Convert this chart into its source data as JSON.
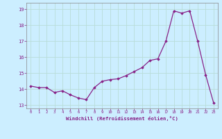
{
  "x": [
    0,
    1,
    2,
    3,
    4,
    5,
    6,
    7,
    8,
    9,
    10,
    11,
    12,
    13,
    14,
    15,
    16,
    17,
    18,
    19,
    20,
    21,
    22,
    23
  ],
  "y": [
    14.2,
    14.1,
    14.1,
    13.8,
    13.9,
    13.65,
    13.45,
    13.35,
    14.1,
    14.5,
    14.6,
    14.65,
    14.85,
    15.1,
    15.35,
    15.8,
    15.9,
    17.0,
    18.9,
    18.75,
    18.9,
    17.0,
    14.9,
    13.15
  ],
  "line_color": "#882288",
  "marker": "D",
  "marker_size": 1.8,
  "bg_color": "#cceeff",
  "grid_color": "#aaddcc",
  "xlabel": "Windchill (Refroidissement éolien,°C)",
  "xlim": [
    -0.5,
    23.5
  ],
  "ylim": [
    12.8,
    19.4
  ],
  "yticks": [
    13,
    14,
    15,
    16,
    17,
    18,
    19
  ],
  "xticks": [
    0,
    1,
    2,
    3,
    4,
    5,
    6,
    7,
    8,
    9,
    10,
    11,
    12,
    13,
    14,
    15,
    16,
    17,
    18,
    19,
    20,
    21,
    22,
    23
  ],
  "xtick_labels": [
    "0",
    "1",
    "2",
    "3",
    "4",
    "5",
    "6",
    "7",
    "8",
    "9",
    "10",
    "11",
    "12",
    "13",
    "14",
    "15",
    "16",
    "17",
    "18",
    "19",
    "20",
    "21",
    "22",
    "23"
  ],
  "line_width": 0.9
}
